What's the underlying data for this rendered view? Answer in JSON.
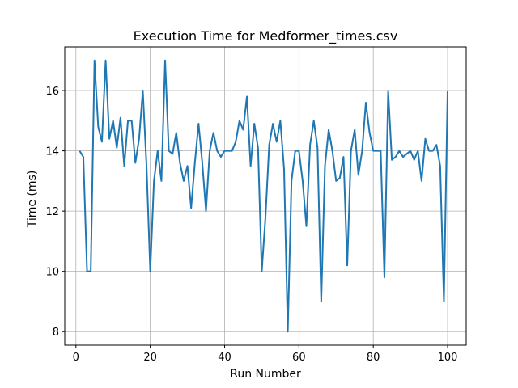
{
  "chart_data": {
    "type": "line",
    "title": "Execution Time for Medformer_times.csv",
    "xlabel": "Run Number",
    "ylabel": "Time (ms)",
    "xlim": [
      -3,
      105
    ],
    "ylim": [
      7.55,
      17.45
    ],
    "xticks": [
      0,
      20,
      40,
      60,
      80,
      100
    ],
    "yticks": [
      8,
      10,
      12,
      14,
      16
    ],
    "grid": true,
    "colors": {
      "line": "#1f77b4",
      "grid": "#b0b0b0",
      "axes": "#000000"
    },
    "series": [
      {
        "x": [
          1,
          2,
          3,
          4,
          5,
          6,
          7,
          8,
          9,
          10,
          11,
          12,
          13,
          14,
          15,
          16,
          17,
          18,
          19,
          20,
          21,
          22,
          23,
          24,
          25,
          26,
          27,
          28,
          29,
          30,
          31,
          32,
          33,
          34,
          35,
          36,
          37,
          38,
          39,
          40,
          41,
          42,
          43,
          44,
          45,
          46,
          47,
          48,
          49,
          50,
          51,
          52,
          53,
          54,
          55,
          56,
          57,
          58,
          59,
          60,
          61,
          62,
          63,
          64,
          65,
          66,
          67,
          68,
          69,
          70,
          71,
          72,
          73,
          74,
          75,
          76,
          77,
          78,
          79,
          80,
          81,
          82,
          83,
          84,
          85,
          86,
          87,
          88,
          89,
          90,
          91,
          92,
          93,
          94,
          95,
          96,
          97,
          98,
          99,
          100
        ],
        "values": [
          14.0,
          13.8,
          10.0,
          10.0,
          17.0,
          14.8,
          14.3,
          17.0,
          14.4,
          15.0,
          14.1,
          15.1,
          13.5,
          15.0,
          15.0,
          13.6,
          14.4,
          16.0,
          13.5,
          10.0,
          13.0,
          14.0,
          13.0,
          17.0,
          14.0,
          13.9,
          14.6,
          13.6,
          13.0,
          13.5,
          12.1,
          13.6,
          14.9,
          13.6,
          12.0,
          14.0,
          14.6,
          14.0,
          13.8,
          14.0,
          14.0,
          14.0,
          14.3,
          15.0,
          14.7,
          15.8,
          13.5,
          14.9,
          14.1,
          10.0,
          11.8,
          14.2,
          14.9,
          14.3,
          15.0,
          13.4,
          8.0,
          13.0,
          14.0,
          14.0,
          13.0,
          11.5,
          14.2,
          15.0,
          14.1,
          9.0,
          13.5,
          14.7,
          14.0,
          13.0,
          13.1,
          13.8,
          10.2,
          14.0,
          14.7,
          13.2,
          14.0,
          15.6,
          14.6,
          14.0,
          14.0,
          14.0,
          9.8,
          16.0,
          13.7,
          13.8,
          14.0,
          13.8,
          13.9,
          14.0,
          13.7,
          14.0,
          13.0,
          14.4,
          14.0,
          14.0,
          14.2,
          13.5,
          9.0,
          16.0
        ]
      }
    ]
  }
}
